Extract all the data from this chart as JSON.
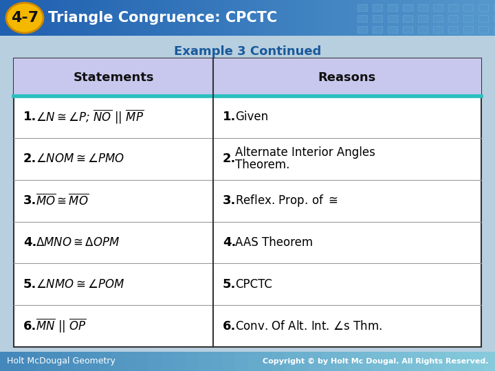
{
  "title_badge": "4-7",
  "title_text": "Triangle Congruence: CPCTC",
  "subtitle": "Example 3 Continued",
  "header_bg": "#c8c8ee",
  "header_statements": "Statements",
  "header_reasons": "Reasons",
  "teal_line_color": "#2abfbf",
  "table_bg": "#ffffff",
  "table_border": "#444444",
  "badge_bg": "#f5b800",
  "title_bg_left": "#2060b0",
  "title_bg_right": "#5599cc",
  "title_text_color": "#ffffff",
  "subtitle_color": "#1a5a9a",
  "footer_bg": "#4488bb",
  "footer_left": "Holt McDougal Geometry",
  "footer_right": "Copyright © by Holt Mc Dougal. All Rights Reserved.",
  "bg_color": "#b8cfe0",
  "rows": [
    {
      "stmt_num": "1.",
      "stmt_content_type": "angle_N_P_NO_MP",
      "reason_num": "1.",
      "reason_lines": [
        "Given"
      ]
    },
    {
      "stmt_num": "2.",
      "stmt_content_type": "angle_NOM_PMO",
      "reason_num": "2.",
      "reason_lines": [
        "Alternate Interior Angles",
        "Theorem."
      ]
    },
    {
      "stmt_num": "3.",
      "stmt_content_type": "overline_MO_MO",
      "reason_num": "3.",
      "reason_lines": [
        "Reflex. Prop. of ≅"
      ]
    },
    {
      "stmt_num": "4.",
      "stmt_content_type": "triangle_MNO_OPM",
      "reason_num": "4.",
      "reason_lines": [
        "AAS Theorem"
      ]
    },
    {
      "stmt_num": "5.",
      "stmt_content_type": "angle_NMO_POM",
      "reason_num": "5.",
      "reason_lines": [
        "CPCTC"
      ]
    },
    {
      "stmt_num": "6.",
      "stmt_content_type": "overline_MN_OP",
      "reason_num": "6.",
      "reason_lines": [
        "Conv. Of Alt. Int. ∠s Thm."
      ]
    }
  ]
}
